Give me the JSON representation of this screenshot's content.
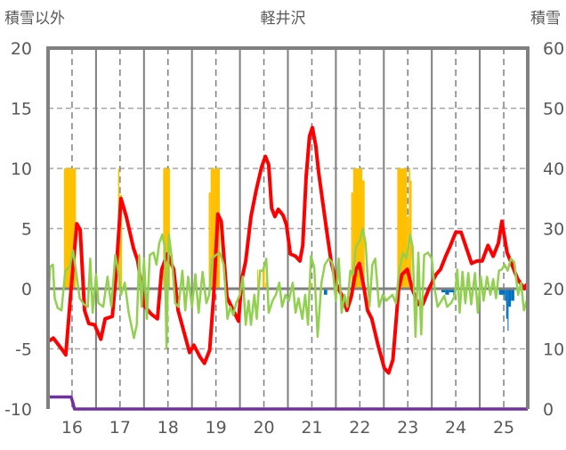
{
  "chart_data": {
    "type": "line",
    "title": "軽井沢",
    "ylabel_left": "積雪以外",
    "ylabel_right": "積雪",
    "xlim": [
      15.5,
      25.5
    ],
    "ylim_left": [
      -10,
      20
    ],
    "ylim_right": [
      0,
      60
    ],
    "x_ticks": [
      "16",
      "17",
      "18",
      "19",
      "20",
      "21",
      "22",
      "23",
      "24",
      "25"
    ],
    "y_ticks_left": [
      "20",
      "15",
      "10",
      "5",
      "0",
      "-5",
      "-10"
    ],
    "y_ticks_right": [
      "60",
      "50",
      "40",
      "30",
      "20",
      "10",
      "0"
    ],
    "grid": true,
    "colors": {
      "red": "#ff0000",
      "green": "#92d050",
      "orange": "#ffc000",
      "blue": "#0070c0",
      "purple": "#7030a0",
      "frame": "#808080"
    },
    "series": [
      {
        "name": "red",
        "axis": "left",
        "points": [
          [
            15.5,
            -4.4
          ],
          [
            15.61,
            -4.1
          ],
          [
            15.8,
            -5.1
          ],
          [
            15.87,
            -5.5
          ],
          [
            15.98,
            0
          ],
          [
            16.1,
            5.4
          ],
          [
            16.17,
            4.9
          ],
          [
            16.26,
            -1.8
          ],
          [
            16.35,
            -2.9
          ],
          [
            16.47,
            -3.0
          ],
          [
            16.6,
            -4.2
          ],
          [
            16.69,
            -2.5
          ],
          [
            16.84,
            -2.3
          ],
          [
            16.91,
            0.8
          ],
          [
            17.02,
            7.5
          ],
          [
            17.13,
            6.0
          ],
          [
            17.28,
            3.4
          ],
          [
            17.37,
            2.3
          ],
          [
            17.5,
            -1.4
          ],
          [
            17.65,
            -2.1
          ],
          [
            17.78,
            -2.5
          ],
          [
            17.87,
            1.6
          ],
          [
            17.99,
            2.9
          ],
          [
            18.12,
            1.6
          ],
          [
            18.21,
            -1.8
          ],
          [
            18.36,
            -4.0
          ],
          [
            18.45,
            -5.3
          ],
          [
            18.54,
            -4.7
          ],
          [
            18.67,
            -5.7
          ],
          [
            18.76,
            -6.2
          ],
          [
            18.87,
            -5.1
          ],
          [
            18.95,
            -0.7
          ],
          [
            19.04,
            6.2
          ],
          [
            19.11,
            5.6
          ],
          [
            19.23,
            -0.7
          ],
          [
            19.36,
            -1.8
          ],
          [
            19.47,
            -2.7
          ],
          [
            19.54,
            0.8
          ],
          [
            19.62,
            2.3
          ],
          [
            19.73,
            6.0
          ],
          [
            19.84,
            8.2
          ],
          [
            19.95,
            10.1
          ],
          [
            20.03,
            11.0
          ],
          [
            20.1,
            10.3
          ],
          [
            20.16,
            6.7
          ],
          [
            20.23,
            6.0
          ],
          [
            20.3,
            6.6
          ],
          [
            20.4,
            6.1
          ],
          [
            20.47,
            5.3
          ],
          [
            20.55,
            2.9
          ],
          [
            20.66,
            2.7
          ],
          [
            20.75,
            2.3
          ],
          [
            20.81,
            3.6
          ],
          [
            20.88,
            9.3
          ],
          [
            20.95,
            12.7
          ],
          [
            21.01,
            13.4
          ],
          [
            21.08,
            11.9
          ],
          [
            21.14,
            9.7
          ],
          [
            21.23,
            7.1
          ],
          [
            21.32,
            4.5
          ],
          [
            21.4,
            2.3
          ],
          [
            21.51,
            0.4
          ],
          [
            21.64,
            -0.7
          ],
          [
            21.73,
            -1.8
          ],
          [
            21.82,
            -0.7
          ],
          [
            21.92,
            1.6
          ],
          [
            21.99,
            2.1
          ],
          [
            22.09,
            0
          ],
          [
            22.16,
            -1.8
          ],
          [
            22.25,
            -2.5
          ],
          [
            22.38,
            -4.7
          ],
          [
            22.51,
            -6.6
          ],
          [
            22.6,
            -7.0
          ],
          [
            22.69,
            -5.9
          ],
          [
            22.81,
            0
          ],
          [
            22.88,
            1.2
          ],
          [
            22.99,
            1.6
          ],
          [
            23.09,
            0
          ],
          [
            23.22,
            -1.3
          ],
          [
            23.31,
            -1.3
          ],
          [
            23.44,
            0
          ],
          [
            23.59,
            1.2
          ],
          [
            23.68,
            1.6
          ],
          [
            23.79,
            2.7
          ],
          [
            23.89,
            3.6
          ],
          [
            24.0,
            4.7
          ],
          [
            24.11,
            4.7
          ],
          [
            24.22,
            3.4
          ],
          [
            24.33,
            2.1
          ],
          [
            24.44,
            2.3
          ],
          [
            24.55,
            2.3
          ],
          [
            24.67,
            3.6
          ],
          [
            24.78,
            2.7
          ],
          [
            24.89,
            3.8
          ],
          [
            24.96,
            5.6
          ],
          [
            25.07,
            3.0
          ],
          [
            25.18,
            1.9
          ],
          [
            25.29,
            0.8
          ],
          [
            25.43,
            0
          ],
          [
            25.48,
            0.4
          ]
        ]
      },
      {
        "name": "green",
        "axis": "left",
        "points": [
          [
            15.5,
            -1.5
          ],
          [
            15.54,
            1.8
          ],
          [
            15.6,
            2.0
          ],
          [
            15.64,
            -0.8
          ],
          [
            15.7,
            -1.6
          ],
          [
            15.78,
            -1.8
          ],
          [
            15.86,
            1.5
          ],
          [
            15.95,
            1.8
          ],
          [
            16.02,
            3.2
          ],
          [
            16.08,
            1.5
          ],
          [
            16.16,
            -0.8
          ],
          [
            16.25,
            -1.3
          ],
          [
            16.33,
            -1.5
          ],
          [
            16.38,
            2.5
          ],
          [
            16.43,
            -2.0
          ],
          [
            16.5,
            1.2
          ],
          [
            16.55,
            -1.2
          ],
          [
            16.65,
            -1.5
          ],
          [
            16.74,
            1.0
          ],
          [
            16.82,
            -1.5
          ],
          [
            16.9,
            2.8
          ],
          [
            16.96,
            1.5
          ],
          [
            17.02,
            -0.5
          ],
          [
            17.1,
            0.5
          ],
          [
            17.18,
            -2.0
          ],
          [
            17.29,
            -4.1
          ],
          [
            17.35,
            -3.0
          ],
          [
            17.4,
            2.8
          ],
          [
            17.45,
            -1.5
          ],
          [
            17.5,
            2.5
          ],
          [
            17.56,
            -2.5
          ],
          [
            17.62,
            2.8
          ],
          [
            17.7,
            3.0
          ],
          [
            17.76,
            2.0
          ],
          [
            17.82,
            3.8
          ],
          [
            17.88,
            4.5
          ],
          [
            17.93,
            3.5
          ],
          [
            17.97,
            -4.9
          ],
          [
            18.02,
            4.5
          ],
          [
            18.08,
            2.5
          ],
          [
            18.15,
            -1.2
          ],
          [
            18.22,
            -1.5
          ],
          [
            18.3,
            1.5
          ],
          [
            18.36,
            -1.8
          ],
          [
            18.42,
            1.0
          ],
          [
            18.5,
            -1.5
          ],
          [
            18.57,
            1.2
          ],
          [
            18.64,
            -2.0
          ],
          [
            18.72,
            1.4
          ],
          [
            18.8,
            -1.2
          ],
          [
            18.86,
            -0.5
          ],
          [
            18.92,
            2.5
          ],
          [
            19.0,
            2.8
          ],
          [
            19.08,
            3.0
          ],
          [
            19.16,
            2.0
          ],
          [
            19.24,
            -2.5
          ],
          [
            19.3,
            -1.5
          ],
          [
            19.36,
            -2.2
          ],
          [
            19.42,
            -1.2
          ],
          [
            19.5,
            -0.5
          ],
          [
            19.56,
            1.0
          ],
          [
            19.62,
            -3.0
          ],
          [
            19.68,
            -1.0
          ],
          [
            19.73,
            -3.0
          ],
          [
            19.8,
            -0.5
          ],
          [
            19.85,
            -2.5
          ],
          [
            19.92,
            1.5
          ],
          [
            19.98,
            1.5
          ],
          [
            20.05,
            2.5
          ],
          [
            20.1,
            -2.0
          ],
          [
            20.18,
            -1.0
          ],
          [
            20.25,
            -0.5
          ],
          [
            20.32,
            0.5
          ],
          [
            20.38,
            -1.5
          ],
          [
            20.45,
            -0.5
          ],
          [
            20.52,
            -1.0
          ],
          [
            20.6,
            0.5
          ],
          [
            20.66,
            -2.0
          ],
          [
            20.72,
            -0.8
          ],
          [
            20.8,
            -2.5
          ],
          [
            20.86,
            -0.5
          ],
          [
            20.92,
            -3.0
          ],
          [
            20.98,
            2.7
          ],
          [
            21.05,
            1.8
          ],
          [
            21.12,
            -4.0
          ],
          [
            21.2,
            0.5
          ],
          [
            21.27,
            2.0
          ],
          [
            21.35,
            2.5
          ],
          [
            21.42,
            2.2
          ],
          [
            21.5,
            -1.0
          ],
          [
            21.56,
            2.5
          ],
          [
            21.62,
            -2.0
          ],
          [
            21.68,
            -0.5
          ],
          [
            21.74,
            -1.5
          ],
          [
            21.8,
            1.5
          ],
          [
            21.86,
            1.2
          ],
          [
            21.92,
            3.5
          ],
          [
            22.0,
            4.0
          ],
          [
            22.06,
            5.0
          ],
          [
            22.12,
            3.8
          ],
          [
            22.2,
            -1.5
          ],
          [
            22.26,
            2.0
          ],
          [
            22.32,
            2.5
          ],
          [
            22.4,
            -1.5
          ],
          [
            22.48,
            -0.5
          ],
          [
            22.55,
            -1.0
          ],
          [
            22.6,
            -0.8
          ],
          [
            22.68,
            -0.5
          ],
          [
            22.75,
            -1.2
          ],
          [
            22.82,
            1.5
          ],
          [
            22.9,
            3.0
          ],
          [
            22.97,
            2.5
          ],
          [
            23.05,
            4.5
          ],
          [
            23.1,
            3.5
          ],
          [
            23.16,
            -4.0
          ],
          [
            23.22,
            3.0
          ],
          [
            23.28,
            -3.8
          ],
          [
            23.34,
            2.8
          ],
          [
            23.42,
            3.0
          ],
          [
            23.5,
            2.5
          ],
          [
            23.56,
            0.0
          ],
          [
            23.62,
            -1.5
          ],
          [
            23.7,
            -1.0
          ],
          [
            23.76,
            -0.6
          ],
          [
            23.82,
            -1.5
          ],
          [
            23.9,
            -1.2
          ],
          [
            23.98,
            -0.6
          ],
          [
            24.03,
            1.6
          ],
          [
            24.08,
            -2.0
          ],
          [
            24.14,
            1.4
          ],
          [
            24.2,
            -1.2
          ],
          [
            24.26,
            1.3
          ],
          [
            24.32,
            -1.3
          ],
          [
            24.4,
            1.3
          ],
          [
            24.46,
            -2.0
          ],
          [
            24.52,
            1.0
          ],
          [
            24.58,
            -1.0
          ],
          [
            24.65,
            1.0
          ],
          [
            24.72,
            -0.5
          ],
          [
            24.78,
            0.8
          ],
          [
            24.84,
            -0.8
          ],
          [
            24.9,
            1.5
          ],
          [
            24.96,
            1.6
          ],
          [
            25.02,
            2.0
          ],
          [
            25.08,
            1.5
          ],
          [
            25.15,
            2.5
          ],
          [
            25.22,
            2.2
          ],
          [
            25.3,
            -0.5
          ],
          [
            25.36,
            0.5
          ],
          [
            25.42,
            -1.8
          ],
          [
            25.48,
            -1.0
          ]
        ]
      },
      {
        "name": "purple",
        "axis": "right",
        "points": [
          [
            15.5,
            2
          ],
          [
            15.98,
            2
          ],
          [
            16.02,
            1
          ],
          [
            16.05,
            0
          ],
          [
            25.5,
            0
          ]
        ]
      }
    ],
    "bars": [
      {
        "name": "orange",
        "axis": "left",
        "color": "orange",
        "items": [
          [
            15.83,
            16.08,
            10
          ],
          [
            16.96,
            16.99,
            10
          ],
          [
            16.99,
            17.04,
            7.8
          ],
          [
            17.9,
            18.04,
            10
          ],
          [
            18.15,
            18.18,
            0.7
          ],
          [
            18.85,
            18.89,
            8
          ],
          [
            18.89,
            19.08,
            10
          ],
          [
            19.86,
            19.88,
            1.6
          ],
          [
            19.97,
            20.0,
            1.8
          ],
          [
            20.0,
            20.02,
            2
          ],
          [
            20.03,
            20.05,
            0.5
          ],
          [
            20.98,
            21.0,
            0.5
          ],
          [
            21.82,
            21.86,
            8
          ],
          [
            21.86,
            22.05,
            10
          ],
          [
            22.05,
            22.1,
            9
          ],
          [
            22.78,
            22.98,
            10
          ],
          [
            22.98,
            23.02,
            6
          ],
          [
            23.02,
            23.05,
            10
          ],
          [
            23.05,
            23.08,
            9
          ]
        ]
      },
      {
        "name": "blue",
        "axis": "left",
        "color": "blue",
        "items": [
          [
            21.25,
            21.32,
            -0.5
          ],
          [
            23.7,
            23.78,
            -0.3
          ],
          [
            23.78,
            23.86,
            -0.5
          ],
          [
            23.86,
            23.95,
            -0.3
          ],
          [
            23.95,
            24.0,
            -0.6
          ],
          [
            24.9,
            25.02,
            -0.5
          ],
          [
            25.02,
            25.05,
            -1.0
          ],
          [
            25.05,
            25.08,
            -2.5
          ],
          [
            25.08,
            25.1,
            -3.5
          ],
          [
            25.1,
            25.15,
            -1.5
          ],
          [
            25.15,
            25.22,
            -1.0
          ]
        ]
      }
    ]
  }
}
